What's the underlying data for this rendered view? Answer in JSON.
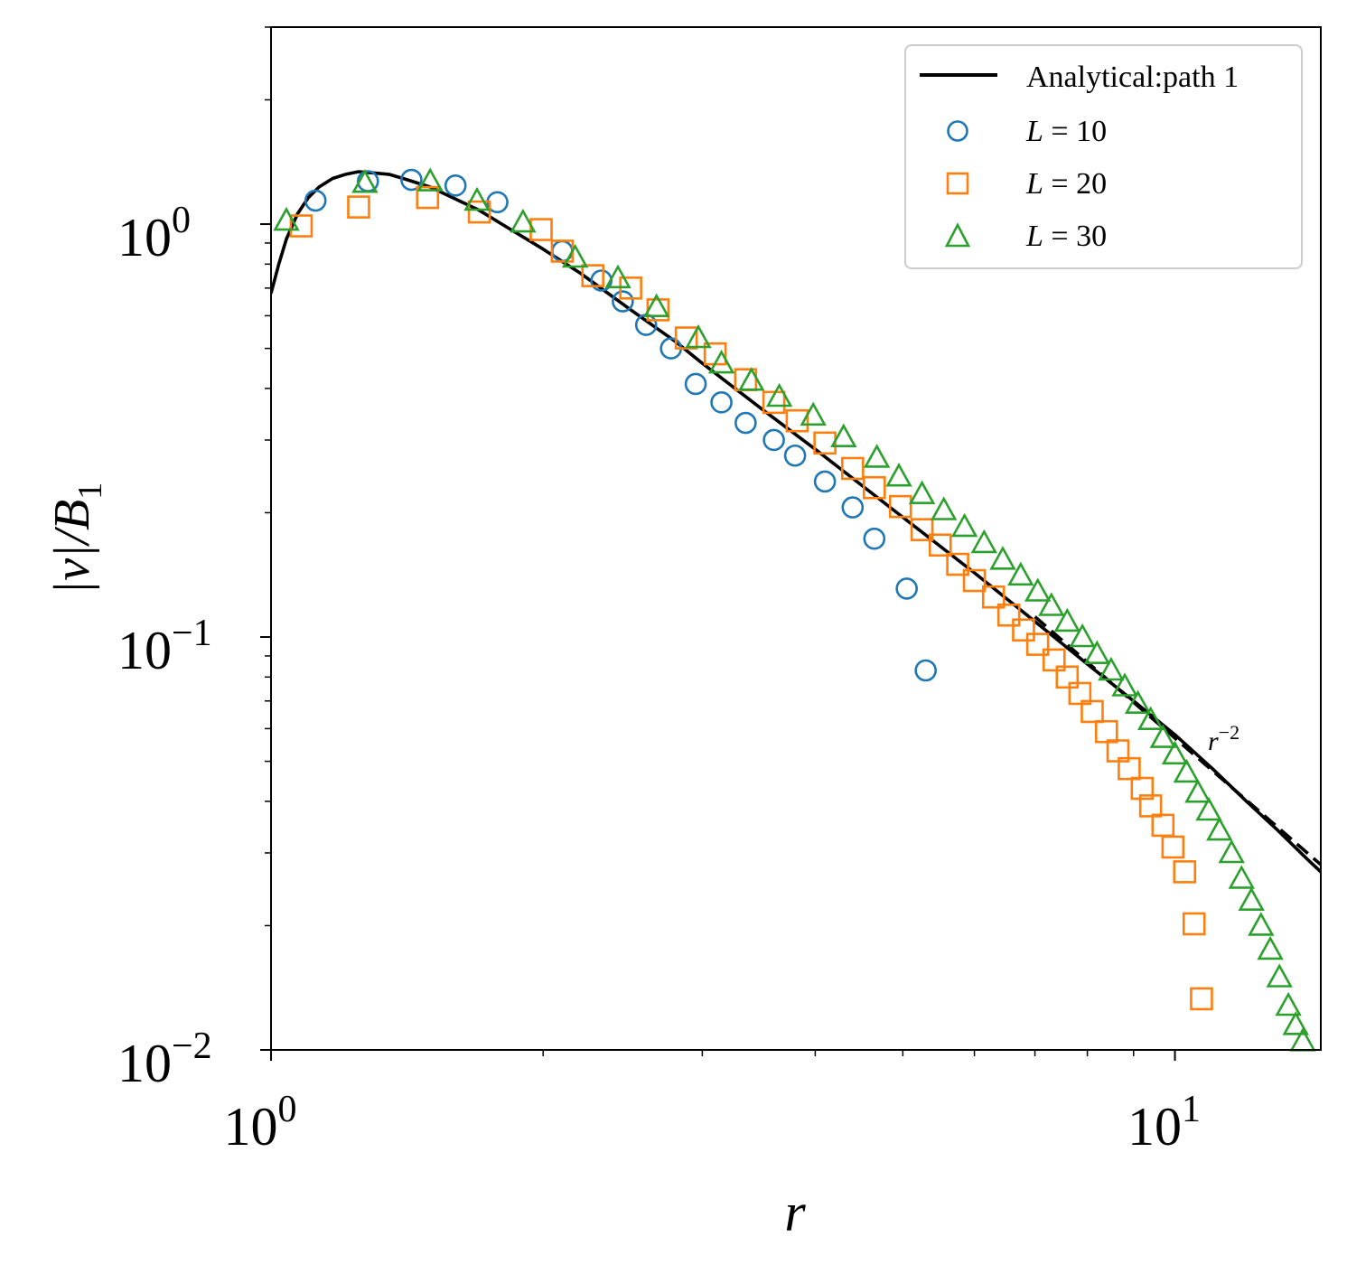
{
  "chart_data": {
    "type": "scatter",
    "scale": {
      "x": "log",
      "y": "log"
    },
    "xlabel": "r",
    "ylabel": "|v|/B",
    "ylabel_sub": "1",
    "xlim": [
      1.0,
      14.5
    ],
    "ylim": [
      0.01,
      3.0
    ],
    "x_ticks": [
      {
        "value": 1,
        "base": "10",
        "exp": "0"
      },
      {
        "value": 10,
        "base": "10",
        "exp": "1"
      }
    ],
    "y_ticks": [
      {
        "value": 0.01,
        "base": "10",
        "exp": "−2"
      },
      {
        "value": 0.1,
        "base": "10",
        "exp": "−1"
      },
      {
        "value": 1,
        "base": "10",
        "exp": "0"
      }
    ],
    "legend_position": "top-right",
    "analytical": {
      "name": "Analytical:path 1",
      "color": "#000000",
      "points": [
        [
          1.0,
          0.68
        ],
        [
          1.02,
          0.8
        ],
        [
          1.04,
          0.92
        ],
        [
          1.07,
          1.06
        ],
        [
          1.1,
          1.16
        ],
        [
          1.13,
          1.23
        ],
        [
          1.17,
          1.29
        ],
        [
          1.21,
          1.32
        ],
        [
          1.25,
          1.34
        ],
        [
          1.3,
          1.33
        ],
        [
          1.35,
          1.32
        ],
        [
          1.4,
          1.29
        ],
        [
          1.5,
          1.23
        ],
        [
          1.6,
          1.15
        ],
        [
          1.7,
          1.08
        ],
        [
          1.8,
          1.0
        ],
        [
          2.0,
          0.87
        ],
        [
          2.2,
          0.76
        ],
        [
          2.5,
          0.62
        ],
        [
          2.8,
          0.52
        ],
        [
          3.0,
          0.46
        ],
        [
          3.5,
          0.355
        ],
        [
          4.0,
          0.285
        ],
        [
          5.0,
          0.195
        ],
        [
          6.0,
          0.143
        ],
        [
          7.0,
          0.109
        ],
        [
          8.0,
          0.086
        ],
        [
          9.0,
          0.07
        ],
        [
          10.0,
          0.058
        ],
        [
          11.0,
          0.048
        ],
        [
          12.0,
          0.04
        ],
        [
          13.0,
          0.034
        ],
        [
          14.0,
          0.029
        ],
        [
          14.5,
          0.027
        ]
      ]
    },
    "reference_line": {
      "label_base": "r",
      "label_exp": "−2",
      "color": "#000000",
      "x": [
        7.0,
        14.5
      ],
      "y": [
        0.112,
        0.0281
      ]
    },
    "series": [
      {
        "name": "L = 10",
        "label_var": "L",
        "label_val": "10",
        "marker": "circle",
        "color": "#1f77b4",
        "points": [
          [
            1.12,
            1.14
          ],
          [
            1.28,
            1.27
          ],
          [
            1.43,
            1.28
          ],
          [
            1.6,
            1.24
          ],
          [
            1.78,
            1.13
          ],
          [
            2.1,
            0.86
          ],
          [
            2.32,
            0.73
          ],
          [
            2.45,
            0.65
          ],
          [
            2.6,
            0.57
          ],
          [
            2.77,
            0.5
          ],
          [
            2.95,
            0.41
          ],
          [
            3.15,
            0.37
          ],
          [
            3.35,
            0.33
          ],
          [
            3.6,
            0.3
          ],
          [
            3.8,
            0.275
          ],
          [
            4.1,
            0.238
          ],
          [
            4.4,
            0.206
          ],
          [
            4.65,
            0.173
          ],
          [
            5.05,
            0.131
          ],
          [
            5.3,
            0.083
          ]
        ]
      },
      {
        "name": "L = 20",
        "label_var": "L",
        "label_val": "20",
        "marker": "square",
        "color": "#ff7f0e",
        "points": [
          [
            1.08,
            0.99
          ],
          [
            1.25,
            1.1
          ],
          [
            1.49,
            1.16
          ],
          [
            1.7,
            1.07
          ],
          [
            1.99,
            0.97
          ],
          [
            2.1,
            0.86
          ],
          [
            2.27,
            0.75
          ],
          [
            2.5,
            0.7
          ],
          [
            2.68,
            0.62
          ],
          [
            2.88,
            0.53
          ],
          [
            3.1,
            0.485
          ],
          [
            3.35,
            0.42
          ],
          [
            3.6,
            0.37
          ],
          [
            3.82,
            0.334
          ],
          [
            4.1,
            0.295
          ],
          [
            4.4,
            0.256
          ],
          [
            4.65,
            0.23
          ],
          [
            4.97,
            0.207
          ],
          [
            5.25,
            0.182
          ],
          [
            5.5,
            0.167
          ],
          [
            5.75,
            0.15
          ],
          [
            6.0,
            0.137
          ],
          [
            6.3,
            0.125
          ],
          [
            6.55,
            0.113
          ],
          [
            6.8,
            0.104
          ],
          [
            7.05,
            0.096
          ],
          [
            7.35,
            0.088
          ],
          [
            7.6,
            0.08
          ],
          [
            7.85,
            0.073
          ],
          [
            8.1,
            0.066
          ],
          [
            8.4,
            0.059
          ],
          [
            8.65,
            0.053
          ],
          [
            8.9,
            0.048
          ],
          [
            9.2,
            0.043
          ],
          [
            9.4,
            0.039
          ],
          [
            9.7,
            0.035
          ],
          [
            9.95,
            0.031
          ],
          [
            10.25,
            0.027
          ],
          [
            10.5,
            0.0202
          ],
          [
            10.7,
            0.0133
          ]
        ]
      },
      {
        "name": "L = 30",
        "label_var": "L",
        "label_val": "30",
        "marker": "triangle",
        "color": "#2ca02c",
        "points": [
          [
            1.04,
            1.02
          ],
          [
            1.27,
            1.26
          ],
          [
            1.5,
            1.27
          ],
          [
            1.69,
            1.14
          ],
          [
            1.9,
            1.01
          ],
          [
            2.17,
            0.83
          ],
          [
            2.42,
            0.74
          ],
          [
            2.67,
            0.63
          ],
          [
            2.97,
            0.53
          ],
          [
            3.15,
            0.46
          ],
          [
            3.4,
            0.418
          ],
          [
            3.65,
            0.382
          ],
          [
            3.98,
            0.344
          ],
          [
            4.3,
            0.305
          ],
          [
            4.68,
            0.272
          ],
          [
            4.95,
            0.245
          ],
          [
            5.25,
            0.222
          ],
          [
            5.55,
            0.203
          ],
          [
            5.85,
            0.185
          ],
          [
            6.15,
            0.169
          ],
          [
            6.45,
            0.154
          ],
          [
            6.75,
            0.141
          ],
          [
            7.05,
            0.129
          ],
          [
            7.3,
            0.119
          ],
          [
            7.6,
            0.109
          ],
          [
            7.9,
            0.1
          ],
          [
            8.2,
            0.091
          ],
          [
            8.5,
            0.083
          ],
          [
            8.8,
            0.076
          ],
          [
            9.1,
            0.069
          ],
          [
            9.4,
            0.063
          ],
          [
            9.7,
            0.057
          ],
          [
            10.0,
            0.052
          ],
          [
            10.3,
            0.047
          ],
          [
            10.6,
            0.042
          ],
          [
            10.9,
            0.038
          ],
          [
            11.2,
            0.034
          ],
          [
            11.55,
            0.03
          ],
          [
            11.85,
            0.026
          ],
          [
            12.15,
            0.023
          ],
          [
            12.45,
            0.02
          ],
          [
            12.75,
            0.0175
          ],
          [
            13.05,
            0.015
          ],
          [
            13.35,
            0.0128
          ],
          [
            13.6,
            0.0115
          ],
          [
            13.85,
            0.0105
          ]
        ]
      }
    ]
  }
}
